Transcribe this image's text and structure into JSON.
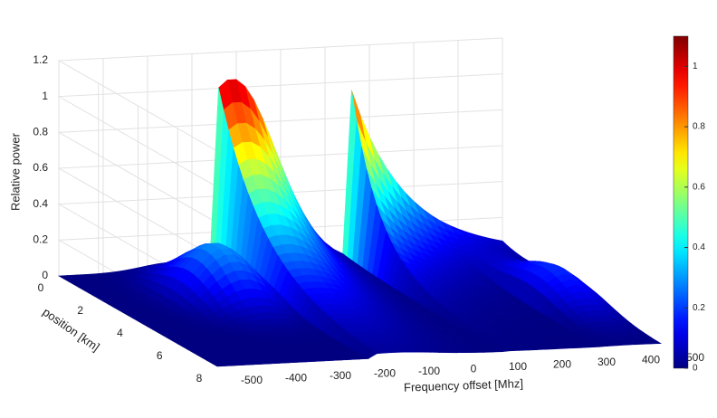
{
  "chart_data": {
    "type": "surface",
    "x_label": "Frequency offset [Mhz]",
    "y_label": "position [km]",
    "z_label": "Relative power",
    "xlim": [
      -500,
      500
    ],
    "xticks": [
      -500,
      -400,
      -300,
      -200,
      -100,
      0,
      100,
      200,
      300,
      400,
      500
    ],
    "ylim": [
      0,
      8
    ],
    "yticks": [
      0,
      2,
      4,
      6,
      8
    ],
    "zlim": [
      0,
      1.2
    ],
    "zticks": [
      0,
      0.2,
      0.4,
      0.6,
      0.8,
      1,
      1.2
    ],
    "colorbar": {
      "lim": [
        0,
        1.1
      ],
      "ticks": [
        0,
        0.2,
        0.4,
        0.6,
        0.8,
        1
      ]
    },
    "colormap": "jet",
    "grid": true
  }
}
